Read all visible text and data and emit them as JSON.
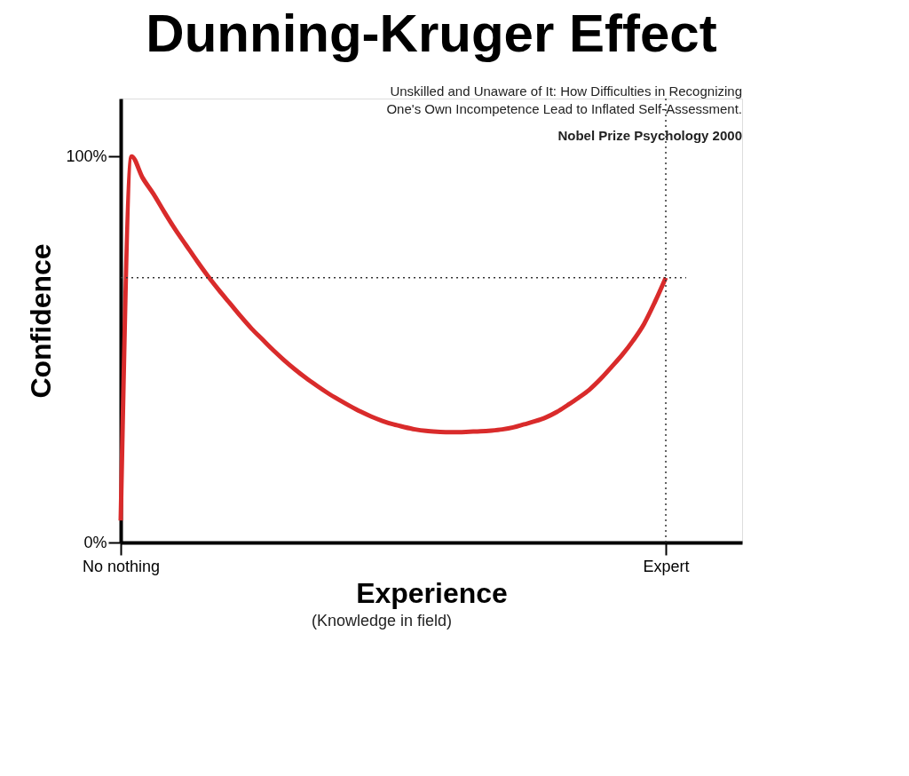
{
  "chart_data": {
    "type": "line",
    "title": "Dunning-Kruger Effect",
    "subtitle": "Unskilled and Unaware of It: How Difficulties in Recognizing One's Own Incompetence Lead to Inflated Self-Assessment.",
    "xlabel": "Experience",
    "ylabel": "Confidence",
    "annotations": [
      "Nobel Prize Psychology  2000",
      "(Knowledge in field)"
    ],
    "categories": [
      "No nothing",
      null,
      null,
      null,
      null,
      null,
      null,
      null,
      null,
      null,
      null,
      null,
      null,
      null,
      null,
      null,
      null,
      null,
      null,
      null,
      null,
      null,
      null,
      null,
      null,
      null,
      null,
      null,
      null,
      null,
      null,
      null,
      null,
      null,
      null,
      null,
      null,
      null,
      null,
      null,
      null,
      null,
      null,
      null,
      null,
      null,
      null,
      null,
      null,
      null,
      "Expert",
      null,
      null,
      null,
      null,
      null,
      null,
      null
    ],
    "ylim": [
      0,
      115
    ],
    "yticks": [
      {
        "value": 0,
        "label": "0%"
      },
      {
        "value": 100,
        "label": "100%"
      }
    ],
    "series": [
      {
        "color": "#d92b2b",
        "values": [
          5.7,
          100,
          94.5,
          90.3,
          85.6,
          81.1,
          77.0,
          72.9,
          69.0,
          65.4,
          62.0,
          58.6,
          55.4,
          52.6,
          49.8,
          47.2,
          44.8,
          42.6,
          40.6,
          38.7,
          37.0,
          35.4,
          33.9,
          32.6,
          31.5,
          30.6,
          29.9,
          29.3,
          28.9,
          28.7,
          28.6,
          28.6,
          28.7,
          28.8,
          29.0,
          29.3,
          29.8,
          30.6,
          31.4,
          32.4,
          33.8,
          35.6,
          37.5,
          39.6,
          42.3,
          45.4,
          48.6,
          52.3,
          56.6,
          62.3,
          68.6,
          null,
          null,
          null,
          null,
          null,
          null,
          null
        ]
      }
    ],
    "ref_lines": [
      {
        "axis": "y",
        "value": 68.6,
        "color": "#333333",
        "line_style": "dotted"
      },
      {
        "axis": "x",
        "value": "Expert",
        "color": "#333333",
        "line_style": "dotted"
      }
    ],
    "grid": false,
    "marker": "none",
    "line_style": "solid"
  }
}
